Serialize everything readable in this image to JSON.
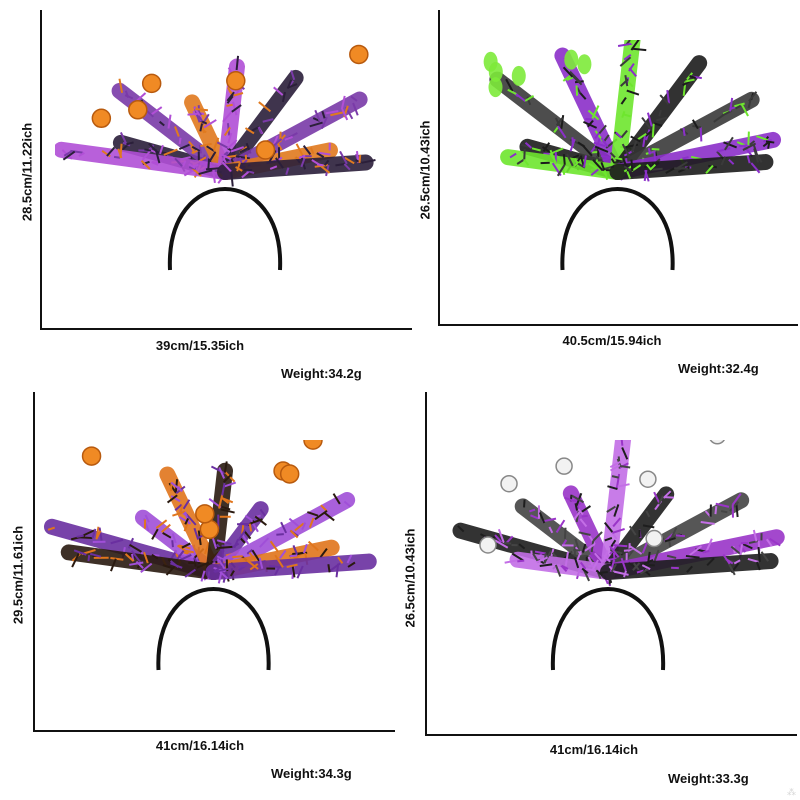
{
  "products": [
    {
      "height_label": "28.5cm/11.22ich",
      "width_label": "39cm/15.35ich",
      "weight_label": "Weight:34.2g",
      "colors": [
        "#2b1f3a",
        "#7a3aa8",
        "#e07a1f",
        "#b14fd6"
      ],
      "accent": "pumpkin"
    },
    {
      "height_label": "26.5cm/10.43ich",
      "width_label": "40.5cm/15.94ich",
      "weight_label": "Weight:32.4g",
      "colors": [
        "#1c1c1c",
        "#3a3a3a",
        "#8b2fc9",
        "#6ee62e"
      ],
      "accent": "ghost"
    },
    {
      "height_label": "29.5cm/11.61ich",
      "width_label": "41cm/16.14ich",
      "weight_label": "Weight:34.3g",
      "colors": [
        "#6a2fa0",
        "#a04fd8",
        "#e0751c",
        "#2a1a10"
      ],
      "accent": "pumpkin"
    },
    {
      "height_label": "26.5cm/10.43ich",
      "width_label": "41cm/16.14ich",
      "weight_label": "Weight:33.3g",
      "colors": [
        "#1e1e1e",
        "#444444",
        "#9a35c8",
        "#c36ee6"
      ],
      "accent": "skull"
    }
  ]
}
